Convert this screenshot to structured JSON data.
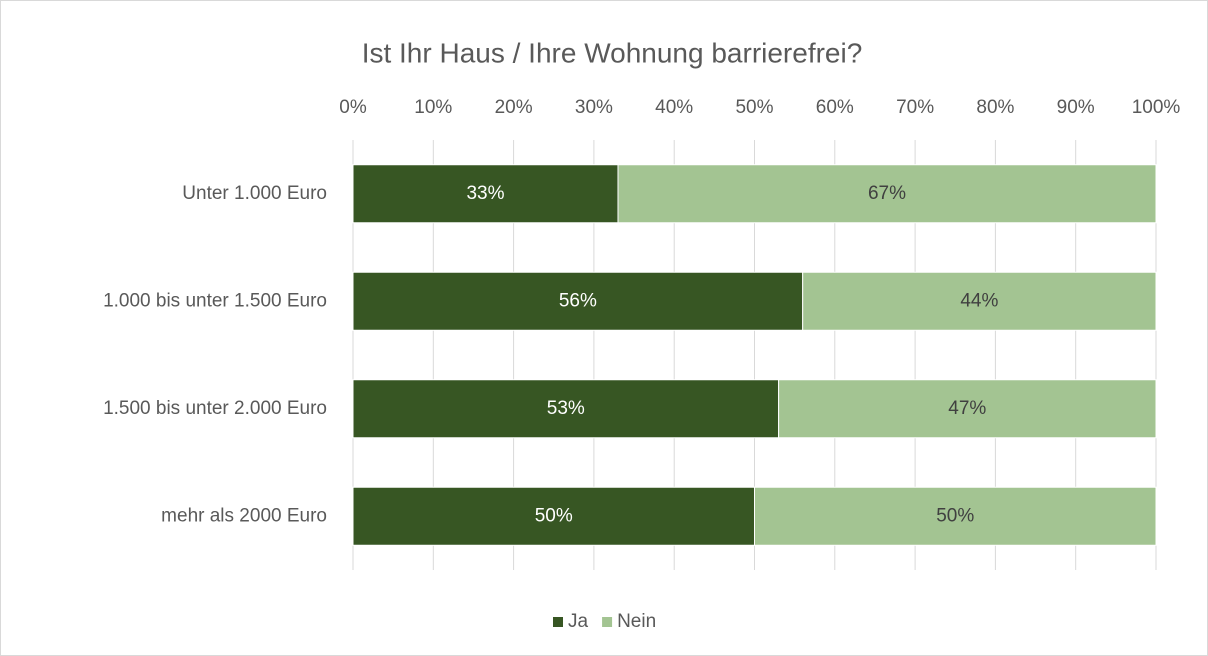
{
  "chart_data": {
    "type": "stacked_bar_horizontal",
    "title": "Ist Ihr Haus / Ihre Wohnung barrierefrei?",
    "categories": [
      "Unter 1.000 Euro",
      "1.000 bis unter 1.500 Euro",
      "1.500 bis unter 2.000 Euro",
      "mehr als 2000 Euro"
    ],
    "series": [
      {
        "name": "Ja",
        "color": "#375623",
        "values": [
          33,
          56,
          53,
          50
        ],
        "value_labels": [
          "33%",
          "56%",
          "53%",
          "50%"
        ]
      },
      {
        "name": "Nein",
        "color": "#a3c492",
        "values": [
          67,
          44,
          47,
          50
        ],
        "value_labels": [
          "67%",
          "44%",
          "47%",
          "50%"
        ]
      }
    ],
    "xlim": [
      0,
      100
    ],
    "xticks": [
      {
        "value": 0,
        "label": "0%"
      },
      {
        "value": 10,
        "label": "10%"
      },
      {
        "value": 20,
        "label": "20%"
      },
      {
        "value": 30,
        "label": "30%"
      },
      {
        "value": 40,
        "label": "40%"
      },
      {
        "value": 50,
        "label": "50%"
      },
      {
        "value": 60,
        "label": "60%"
      },
      {
        "value": 70,
        "label": "70%"
      },
      {
        "value": 80,
        "label": "80%"
      },
      {
        "value": 90,
        "label": "90%"
      },
      {
        "value": 100,
        "label": "100%"
      }
    ],
    "grid": true,
    "legend": "bottom"
  }
}
